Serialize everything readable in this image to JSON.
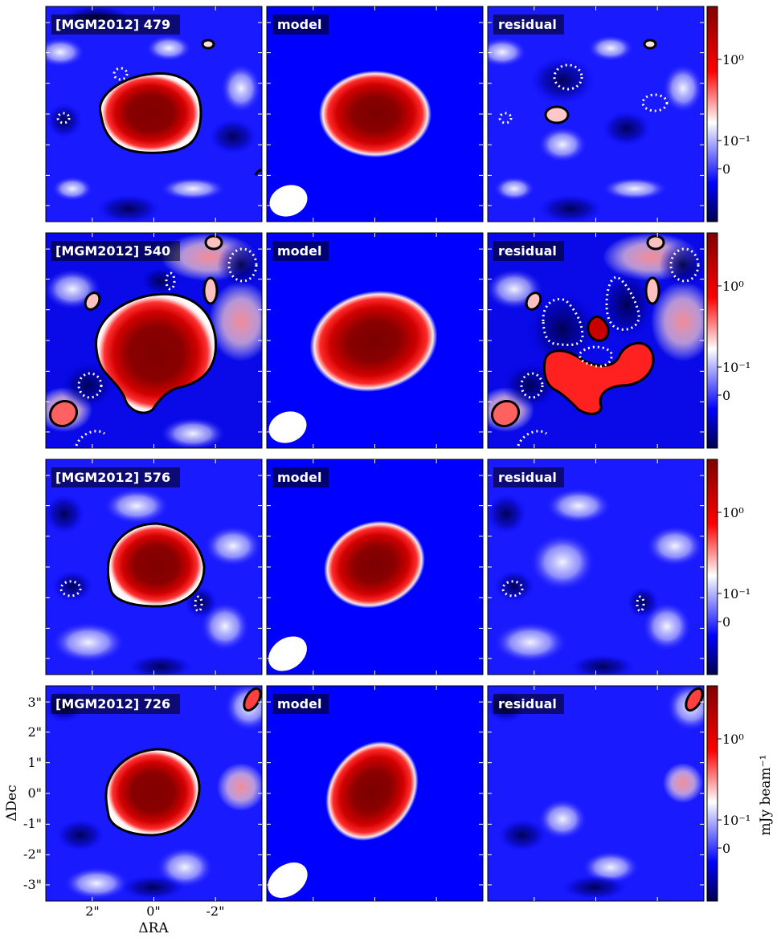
{
  "chart_data": {
    "type": "heatmap",
    "layout": {
      "rows": 4,
      "columns": [
        "data",
        "model",
        "residual"
      ]
    },
    "sources": [
      {
        "id": "[MGM2012] 479",
        "model_label": "model",
        "residual_label": "residual"
      },
      {
        "id": "[MGM2012] 540",
        "model_label": "model",
        "residual_label": "residual"
      },
      {
        "id": "[MGM2012] 576",
        "model_label": "model",
        "residual_label": "residual"
      },
      {
        "id": "[MGM2012] 726",
        "model_label": "model",
        "residual_label": "residual"
      }
    ],
    "xlabel": "ΔRA",
    "ylabel": "ΔDec",
    "x_ticks": [
      "2\"",
      "0\"",
      "-2\""
    ],
    "y_ticks": [
      "3\"",
      "2\"",
      "1\"",
      "0\"",
      "-1\"",
      "-2\"",
      "-3\""
    ],
    "colorbar": {
      "label": "mJy beam⁻¹",
      "ticks": [
        "10⁰",
        "10⁻¹",
        "0"
      ],
      "colormap": "seismic",
      "colors": [
        "#00004c",
        "#0000ff",
        "#ffffff",
        "#ff0000",
        "#800000"
      ]
    },
    "contours": {
      "positive": "solid black",
      "negative": "dotted white"
    },
    "beam": "white ellipse, lower-left of model panels"
  }
}
